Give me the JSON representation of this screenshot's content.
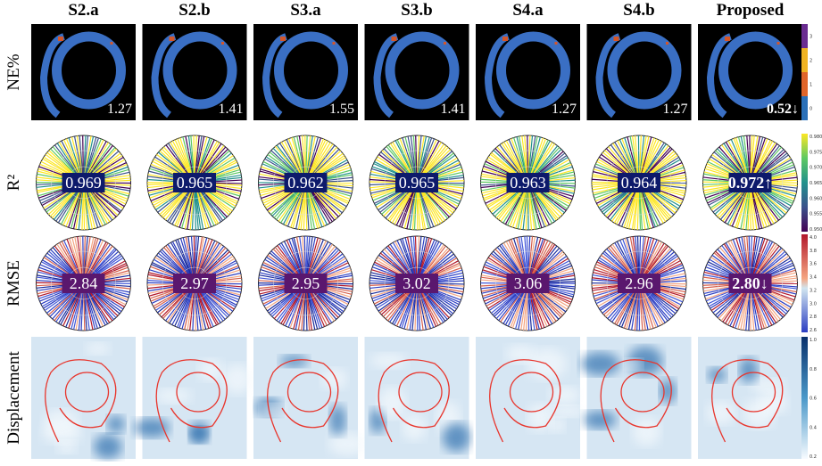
{
  "columns": [
    "S2.a",
    "S2.b",
    "S3.a",
    "S3.b",
    "S4.a",
    "S4.b",
    "Proposed"
  ],
  "rows": [
    {
      "label": "NE%",
      "values": [
        "1.27",
        "1.41",
        "1.55",
        "1.41",
        "1.27",
        "1.27",
        "0.52↓"
      ],
      "colorbar": [
        "3",
        "2",
        "1",
        "0"
      ]
    },
    {
      "label": "R²",
      "values": [
        "0.969",
        "0.965",
        "0.962",
        "0.965",
        "0.963",
        "0.964",
        "0.972↑"
      ],
      "colorbar": [
        "0.980",
        "0.975",
        "0.970",
        "0.965",
        "0.960",
        "0.955",
        "0.950"
      ]
    },
    {
      "label": "RMSE",
      "values": [
        "2.84",
        "2.97",
        "2.95",
        "3.02",
        "3.06",
        "2.96",
        "2.80↓"
      ],
      "colorbar": [
        "4.0",
        "3.8",
        "3.6",
        "3.4",
        "3.2",
        "3.0",
        "2.8",
        "2.6"
      ]
    },
    {
      "label": "Displacement",
      "colorbar": [
        "1.0",
        "0.8",
        "0.6",
        "0.4",
        "0.2"
      ]
    }
  ]
}
